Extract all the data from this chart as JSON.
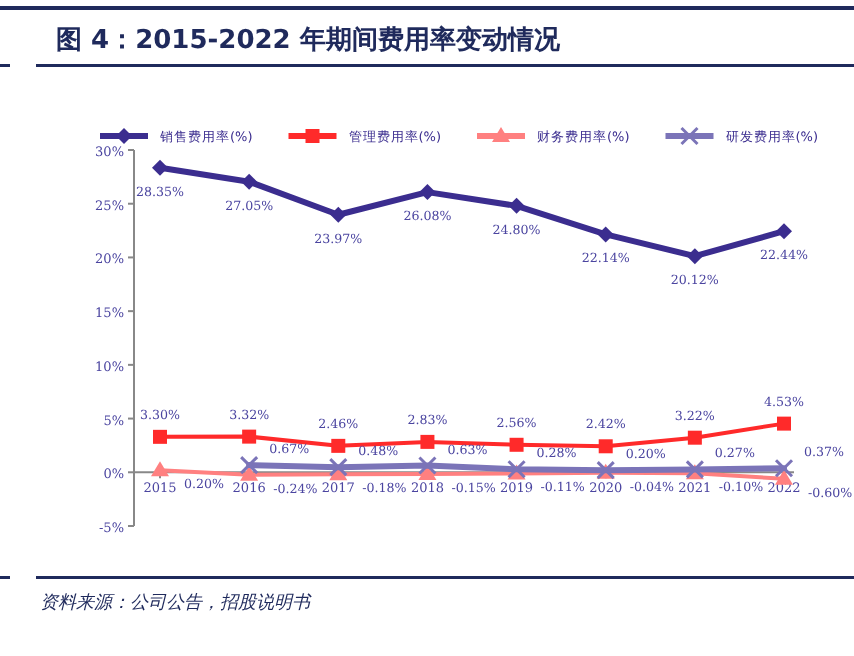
{
  "chart_data": {
    "type": "line",
    "title": "图 4：2015-2022 年期间费用率变动情况",
    "categories": [
      "2015",
      "2016",
      "2017",
      "2018",
      "2019",
      "2020",
      "2021",
      "2022"
    ],
    "ylim": [
      -5,
      30
    ],
    "yticks": [
      {
        "value": -5,
        "label": "-5%"
      },
      {
        "value": 0,
        "label": "0%"
      },
      {
        "value": 5,
        "label": "5%"
      },
      {
        "value": 10,
        "label": "10%"
      },
      {
        "value": 15,
        "label": "15%"
      },
      {
        "value": 20,
        "label": "20%"
      },
      {
        "value": 25,
        "label": "25%"
      },
      {
        "value": 30,
        "label": "30%"
      }
    ],
    "legend": "top",
    "grid": false,
    "series": [
      {
        "name": "销售费用率(%)",
        "color": "#3b2d8f",
        "marker": "diamond",
        "values": [
          28.35,
          27.05,
          23.97,
          26.08,
          24.8,
          22.14,
          20.12,
          22.44
        ],
        "value_labels": [
          "28.35%",
          "27.05%",
          "23.97%",
          "26.08%",
          "24.80%",
          "22.14%",
          "20.12%",
          "22.44%"
        ]
      },
      {
        "name": "管理费用率(%)",
        "color": "#ff2a2a",
        "marker": "square",
        "values": [
          3.3,
          3.32,
          2.46,
          2.83,
          2.56,
          2.42,
          3.22,
          4.53
        ],
        "value_labels": [
          "3.30%",
          "3.32%",
          "2.46%",
          "2.83%",
          "2.56%",
          "2.42%",
          "3.22%",
          "4.53%"
        ]
      },
      {
        "name": "财务费用率(%)",
        "color": "#ff8080",
        "marker": "triangle",
        "values": [
          0.2,
          -0.24,
          -0.18,
          -0.15,
          -0.11,
          -0.04,
          -0.1,
          -0.6
        ],
        "value_labels": [
          "0.20%",
          "-0.24%",
          "-0.18%",
          "-0.15%",
          "-0.11%",
          "-0.04%",
          "-0.10%",
          "-0.60%"
        ]
      },
      {
        "name": "研发费用率(%)",
        "color": "#7b74b8",
        "marker": "cross",
        "values": [
          null,
          0.67,
          0.48,
          0.63,
          0.28,
          0.2,
          0.27,
          0.37
        ],
        "value_labels": [
          null,
          "0.67%",
          "0.48%",
          "0.63%",
          "0.28%",
          "0.20%",
          "0.27%",
          "0.37%"
        ]
      }
    ],
    "annotations": [
      "资料来源：公司公告，招股说明书"
    ]
  }
}
